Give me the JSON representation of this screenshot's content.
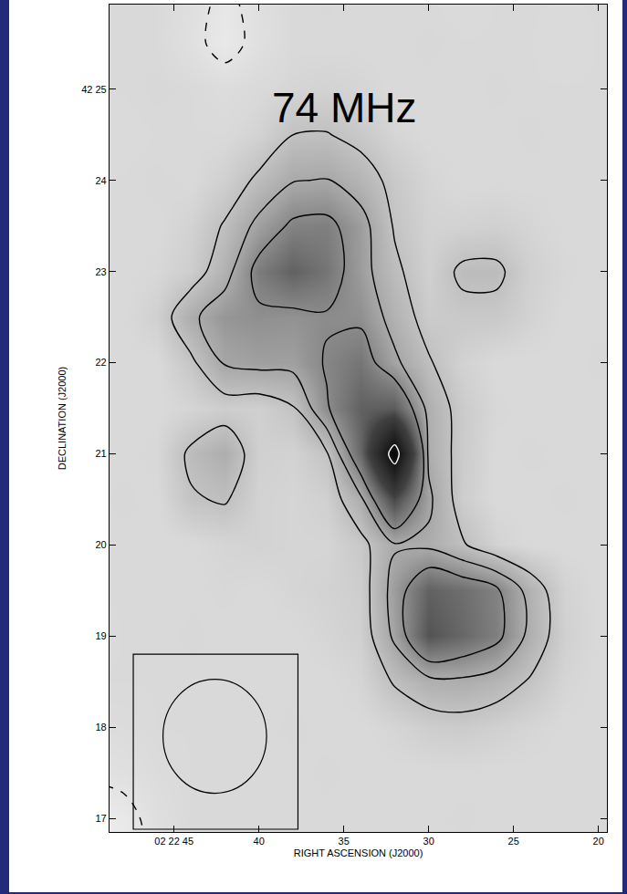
{
  "chart_data": {
    "type": "contour",
    "annotation": {
      "text": "74 MHz",
      "x": 35,
      "y": 24.8
    },
    "xlabel": "RIGHT ASCENSION (J2000)",
    "ylabel": "DECLINATION (J2000)",
    "xlim": [
      48.8,
      19.5
    ],
    "xticks": [
      {
        "value": 45,
        "label": "02 22 45"
      },
      40,
      35,
      30,
      25,
      20
    ],
    "ylim": [
      16.85,
      25.93
    ],
    "yticks": [
      17,
      18,
      19,
      20,
      21,
      22,
      23,
      24,
      {
        "value": 25,
        "label": "42 25"
      }
    ],
    "grid": false,
    "x": [
      18,
      20,
      22,
      24,
      26,
      28,
      30,
      32,
      34,
      36,
      38,
      40,
      42,
      44,
      46,
      48,
      50
    ],
    "y": [
      16.5,
      17,
      17.5,
      18,
      18.5,
      19,
      19.5,
      20,
      20.5,
      21,
      21.5,
      22,
      22.5,
      23,
      23.5,
      24,
      24.5,
      25,
      25.5,
      26
    ],
    "z": [
      [
        0,
        0,
        0,
        0,
        0,
        0,
        0,
        0,
        0,
        0,
        0,
        0,
        0,
        0,
        -0.6,
        -1.8,
        -2.0
      ],
      [
        0,
        0,
        0,
        0,
        0,
        0.1,
        0,
        0,
        0,
        0,
        0,
        0,
        0,
        0,
        -0.5,
        -1.5,
        -1.8
      ],
      [
        0,
        0,
        0,
        0,
        0,
        0,
        0,
        0,
        0,
        0.1,
        0,
        0,
        0,
        0,
        -0.2,
        -0.6,
        -0.8
      ],
      [
        0,
        0,
        0,
        0.2,
        0.4,
        0.6,
        0.5,
        0.2,
        0,
        0,
        0.1,
        0,
        0,
        0,
        0,
        -0.2,
        -0.3
      ],
      [
        0,
        0,
        0.2,
        0.9,
        1.5,
        1.8,
        1.7,
        1.1,
        0.2,
        0,
        0,
        0,
        0,
        0,
        0,
        0,
        0
      ],
      [
        0,
        0,
        0.4,
        1.7,
        3.3,
        4.0,
        4.6,
        2.2,
        0.4,
        0.2,
        0,
        0,
        0,
        0.1,
        0,
        0,
        -0.1
      ],
      [
        0,
        0,
        0.3,
        1.6,
        3.2,
        3.8,
        4.2,
        2.4,
        0.5,
        0.3,
        0.2,
        0,
        0.1,
        0,
        0,
        0,
        0
      ],
      [
        0,
        0,
        0,
        0,
        0.3,
        1.1,
        1.8,
        1.9,
        0.7,
        0.2,
        0.2,
        0.3,
        0.2,
        0,
        0,
        0,
        0
      ],
      [
        0,
        0,
        0.1,
        0,
        0,
        0.5,
        2.2,
        5.0,
        1.8,
        0.4,
        0.2,
        0.3,
        1.1,
        0.9,
        0,
        0.1,
        0
      ],
      [
        0,
        0,
        0,
        0.1,
        0,
        0.6,
        1.8,
        9.5,
        4.0,
        0.9,
        0.3,
        0.4,
        1.8,
        1.2,
        0.1,
        0,
        0
      ],
      [
        0,
        0,
        0,
        0,
        0.1,
        0.6,
        1.7,
        4.4,
        4.2,
        2.9,
        0.9,
        0.4,
        0.5,
        0.2,
        0,
        0,
        0
      ],
      [
        0,
        0.1,
        0,
        0,
        0,
        0.3,
        1.1,
        2.2,
        3.6,
        3.1,
        2.3,
        2.3,
        2.1,
        0.8,
        0,
        0,
        0
      ],
      [
        0,
        0,
        0,
        0.3,
        0.7,
        0.7,
        0.6,
        1.6,
        2.8,
        2.9,
        2.7,
        2.8,
        2.6,
        1.8,
        0.4,
        0,
        0.1
      ],
      [
        0,
        0,
        0.1,
        0.4,
        1.2,
        1.2,
        0.4,
        1.2,
        2.4,
        3.6,
        4.2,
        3.4,
        1.6,
        0.5,
        0.1,
        0,
        0
      ],
      [
        0,
        0,
        0,
        0.2,
        0.4,
        0.3,
        0.3,
        0.9,
        2.4,
        3.3,
        3.2,
        2.3,
        1.1,
        0.3,
        0,
        0,
        0
      ],
      [
        0,
        0,
        0,
        0,
        0,
        0,
        0.2,
        0.7,
        1.5,
        2.05,
        1.95,
        1.2,
        0.4,
        0,
        0.1,
        0,
        0
      ],
      [
        0,
        0,
        0,
        0.1,
        0,
        0,
        0,
        0.2,
        0.7,
        1.05,
        1.0,
        0.3,
        0,
        0,
        0,
        -0.1,
        0
      ],
      [
        0,
        0,
        0,
        0,
        0.1,
        0,
        0,
        0,
        0.2,
        0.3,
        0.2,
        0,
        -0.3,
        0,
        0.1,
        0,
        0
      ],
      [
        0,
        0,
        -0.1,
        0,
        0,
        0,
        0.1,
        0,
        0,
        0,
        0,
        -0.6,
        -1.5,
        -0.6,
        0,
        0,
        0
      ],
      [
        0,
        0,
        0,
        0,
        0,
        -0.1,
        0,
        0,
        0,
        0.1,
        0,
        -0.5,
        -1.3,
        -0.5,
        0,
        0,
        0.1
      ]
    ],
    "zlim": [
      -2,
      10
    ],
    "contours": [
      {
        "levels": [
          -1
        ],
        "line_style": "dashed",
        "color": "#000000"
      },
      {
        "levels": [
          1,
          2,
          3
        ],
        "line_style": "solid",
        "color": "#000000"
      },
      {
        "levels": [
          8.5
        ],
        "line_style": "solid",
        "color": "#ffffff"
      }
    ],
    "beam": {
      "x": 42.6,
      "y": 17.9,
      "width": 6.1,
      "height": 1.25
    },
    "beam_box": {
      "x": [
        47.4,
        37.7
      ],
      "y": [
        16.88,
        18.8
      ]
    }
  }
}
